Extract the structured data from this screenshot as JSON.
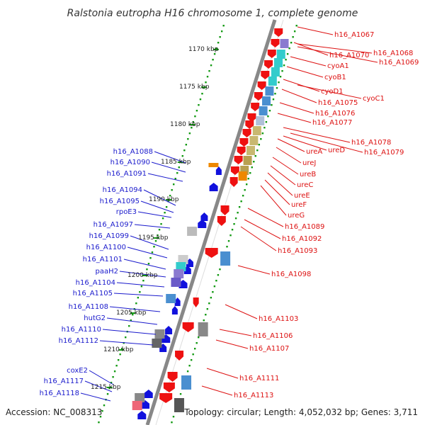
{
  "title": "Ralstonia eutropha H16 chromosome 1, complete genome",
  "accession": "Accession: NC_008313",
  "topology": "Topology: circular; Length: 4,052,032 bp; Genes: 3,711",
  "colors": {
    "forward": "#ee1111",
    "reverse": "#1111dd",
    "ticks": "#119911",
    "backbone": "#888888",
    "label_blue": "#1a1acc",
    "label_red": "#dd1111"
  },
  "scale_labels": [
    "1170 kbp",
    "1175 kbp",
    "1180 kbp",
    "1185 kbp",
    "1190 kbp",
    "1195 kbp",
    "1200 kbp",
    "1205 kbp",
    "1210 kbp",
    "1215 kbp"
  ],
  "blue_labels": [
    "h16_A1088",
    "h16_A1090",
    "h16_A1091",
    "h16_A1094",
    "h16_A1095",
    "rpoE3",
    "h16_A1097",
    "h16_A1099",
    "h16_A1100",
    "h16_A1101",
    "paaH2",
    "h16_A1104",
    "h16_A1105",
    "h16_A1108",
    "hutG2",
    "h16_A1110",
    "h16_A1112",
    "coxE2",
    "h16_A1117",
    "h16_A1118"
  ],
  "red_labels": [
    "h16_A1067",
    "h16_A1070",
    "h16_A1068",
    "h16_A1069",
    "cyoA1",
    "cyoB1",
    "cyoD1",
    "cyoC1",
    "h16_A1075",
    "h16_A1076",
    "h16_A1077",
    "h16_A1078",
    "ureA",
    "ureD",
    "h16_A1079",
    "ureJ",
    "ureB",
    "ureC",
    "ureE",
    "ureF",
    "ureG",
    "h16_A1089",
    "h16_A1092",
    "h16_A1093",
    "h16_A1098",
    "h16_A1103",
    "h16_A1106",
    "h16_A1107",
    "h16_A1111",
    "h16_A1113"
  ]
}
